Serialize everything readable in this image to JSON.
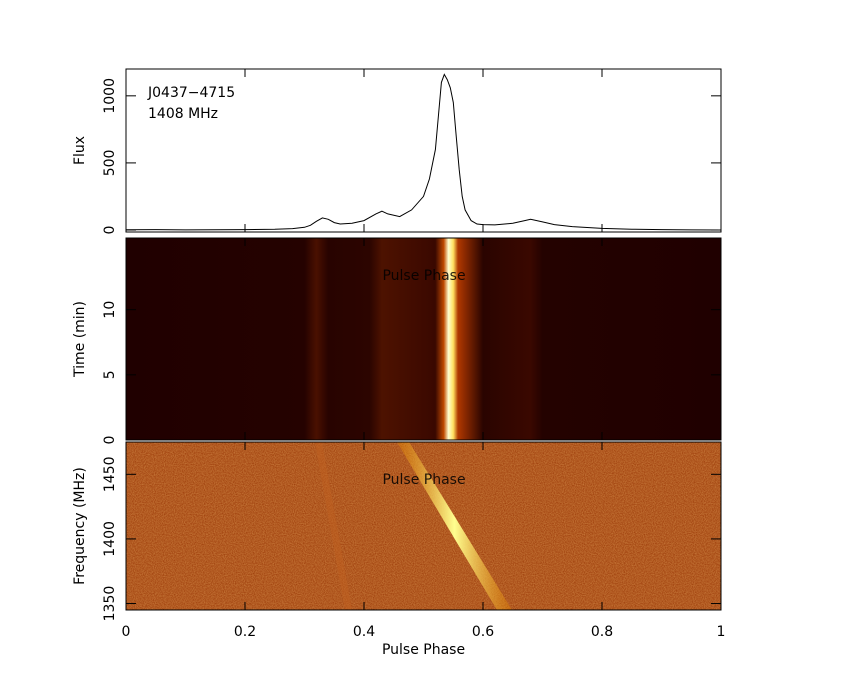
{
  "chart_data": [
    {
      "type": "line",
      "ylabel": "Flux",
      "annotations": [
        "J0437−4715",
        "1408 MHz"
      ],
      "color": "#000000",
      "xlim": [
        0,
        1
      ],
      "ylim": [
        -15,
        1200
      ],
      "yticks": [
        0,
        500,
        1000
      ],
      "x": [
        0,
        0.05,
        0.1,
        0.15,
        0.2,
        0.25,
        0.28,
        0.3,
        0.31,
        0.32,
        0.33,
        0.34,
        0.35,
        0.36,
        0.38,
        0.4,
        0.42,
        0.43,
        0.44,
        0.46,
        0.48,
        0.5,
        0.51,
        0.52,
        0.525,
        0.53,
        0.535,
        0.54,
        0.545,
        0.55,
        0.555,
        0.56,
        0.565,
        0.57,
        0.58,
        0.59,
        0.6,
        0.62,
        0.65,
        0.67,
        0.68,
        0.7,
        0.72,
        0.75,
        0.8,
        0.85,
        0.9,
        0.95,
        1
      ],
      "values": [
        2,
        3,
        1,
        2,
        3,
        5,
        10,
        20,
        35,
        65,
        90,
        80,
        55,
        45,
        50,
        70,
        120,
        140,
        120,
        100,
        150,
        250,
        380,
        600,
        850,
        1100,
        1160,
        1120,
        1060,
        950,
        700,
        450,
        250,
        150,
        70,
        45,
        40,
        38,
        50,
        70,
        80,
        60,
        40,
        25,
        12,
        6,
        3,
        1,
        0
      ]
    },
    {
      "type": "image",
      "ylabel": "Time (min)",
      "annotation": "Pulse Phase",
      "xlim": [
        0,
        1
      ],
      "ylim": [
        0,
        15.5
      ],
      "yticks": [
        0,
        5,
        10
      ]
    },
    {
      "type": "image",
      "ylabel": "Frequency (MHz)",
      "annotation": "Pulse Phase",
      "xlabel": "Pulse Phase",
      "xlim": [
        0,
        1
      ],
      "ylim": [
        1345,
        1475
      ],
      "yticks": [
        1350,
        1400,
        1450
      ],
      "xticks": [
        0,
        0.2,
        0.4,
        0.6,
        0.8,
        1
      ]
    }
  ]
}
